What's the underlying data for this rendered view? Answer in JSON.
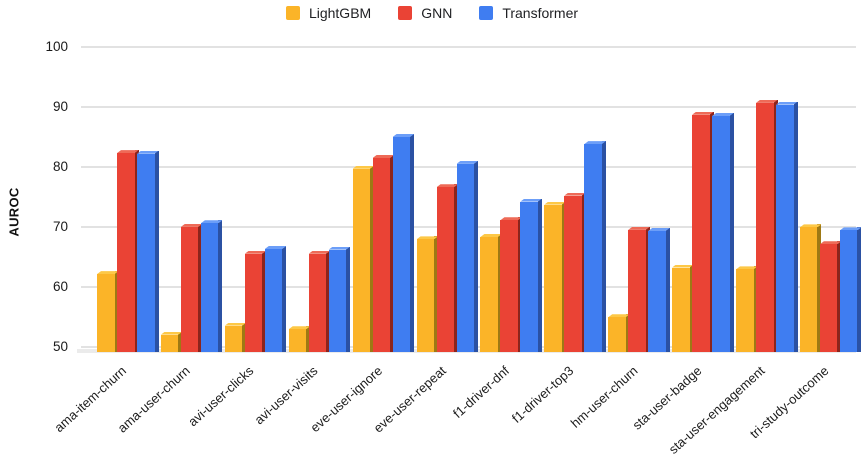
{
  "chart_data": {
    "type": "bar",
    "title": "",
    "ylabel": "AUROC",
    "ylim": [
      49.1,
      100
    ],
    "yticks": [
      50,
      60,
      70,
      80,
      90,
      100
    ],
    "grid": true,
    "legend_position": "top",
    "categories": [
      "ama-item-churn",
      "ama-user-churn",
      "avi-user-clicks",
      "avi-user-visits",
      "eve-user-ignore",
      "eve-user-repeat",
      "f1-driver-dnf",
      "f1-driver-top3",
      "hm-user-churn",
      "sta-user-badge",
      "sta-user-engagement",
      "tri-study-outcome"
    ],
    "series": [
      {
        "name": "LightGBM",
        "color": "#FBB428",
        "top_color": "#FDC847",
        "side_color": "#9E7914",
        "values": [
          62.1,
          52.0,
          53.5,
          52.9,
          79.7,
          67.9,
          68.3,
          73.7,
          54.9,
          63.2,
          62.9,
          69.9
        ]
      },
      {
        "name": "GNN",
        "color": "#EA4335",
        "top_color": "#EE6A57",
        "side_color": "#8C241C",
        "values": [
          82.3,
          70.0,
          65.5,
          65.5,
          81.5,
          76.6,
          71.1,
          75.2,
          69.5,
          88.7,
          90.7,
          67.1
        ]
      },
      {
        "name": "Transformer",
        "color": "#3F7DF1",
        "top_color": "#6C9EF8",
        "side_color": "#2B51A3",
        "values": [
          82.2,
          70.6,
          66.3,
          66.2,
          85.0,
          80.5,
          74.2,
          83.8,
          69.3,
          88.5,
          90.4,
          69.4
        ]
      }
    ]
  }
}
